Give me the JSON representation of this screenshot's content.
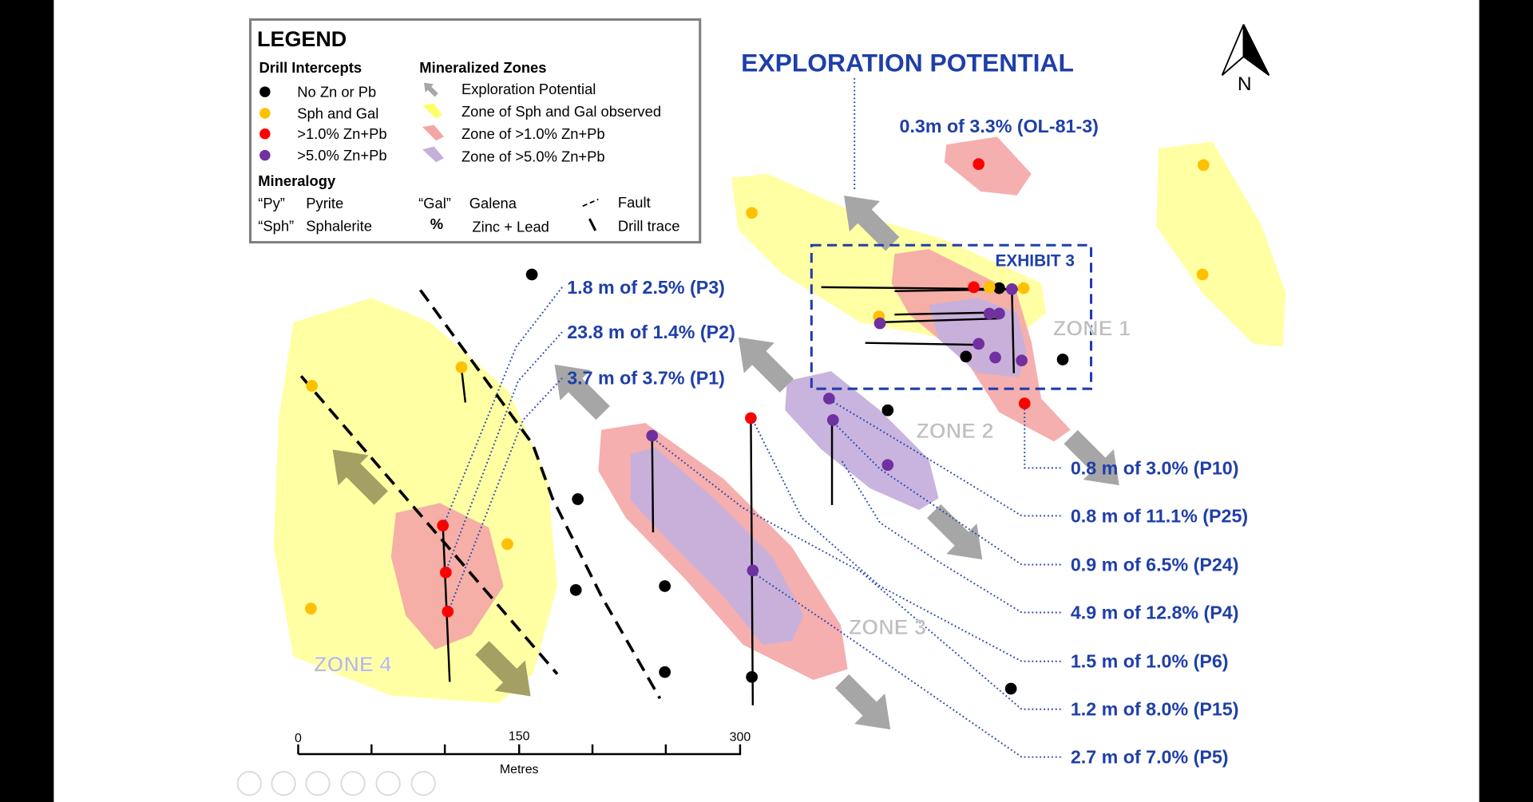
{
  "legend": {
    "title": "LEGEND",
    "drill_intercepts": {
      "heading": "Drill Intercepts",
      "items": [
        "No Zn or Pb",
        "Sph and Gal",
        ">1.0% Zn+Pb",
        ">5.0% Zn+Pb"
      ]
    },
    "mineralized_zones": {
      "heading": "Mineralized Zones",
      "items": [
        "Exploration Potential",
        "Zone of Sph and Gal observed",
        "Zone of >1.0% Zn+Pb",
        "Zone of >5.0% Zn+Pb"
      ]
    },
    "mineralogy": {
      "heading": "Mineralogy",
      "abbreviations": [
        {
          "abbr": "“Py”",
          "name": "Pyrite"
        },
        {
          "abbr": "“Sph”",
          "name": "Sphalerite"
        },
        {
          "abbr": "“Gal”",
          "name": "Galena"
        },
        {
          "abbr": "%",
          "name": "Zinc + Lead"
        }
      ],
      "symbols": [
        "Fault",
        "Drill trace"
      ]
    }
  },
  "title": "EXPLORATION POTENTIAL",
  "north": "N",
  "exhibit": "EXHIBIT 3",
  "zones": [
    "ZONE 1",
    "ZONE 2",
    "ZONE 3",
    "ZONE 4"
  ],
  "intercepts": [
    "0.3m of 3.3% (OL-81-3)",
    "1.8 m of 2.5% (P3)",
    "23.8 m of 1.4% (P2)",
    "3.7 m of 3.7% (P1)",
    "0.8 m of 3.0% (P10)",
    "0.8 m of 11.1% (P25)",
    "0.9 m of 6.5% (P24)",
    "4.9 m of 12.8% (P4)",
    "1.5 m of 1.0% (P6)",
    "1.2 m of 8.0% (P15)",
    "2.7 m of 7.0% (P5)"
  ],
  "scale_bar": {
    "ticks": [
      0,
      150,
      300
    ],
    "label": "Metres"
  }
}
